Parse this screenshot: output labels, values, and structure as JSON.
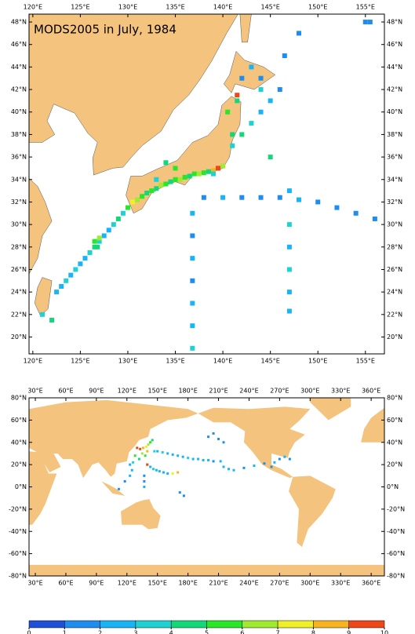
{
  "title": "MODS2005 in July, 1984",
  "maps": [
    {
      "xlim": [
        119.6,
        157
      ],
      "ylim": [
        18.5,
        48.7
      ],
      "xticks": [
        {
          "value": 120,
          "label": "120°E"
        },
        {
          "value": 125,
          "label": "125°E"
        },
        {
          "value": 130,
          "label": "130°E"
        },
        {
          "value": 135,
          "label": "135°E"
        },
        {
          "value": 140,
          "label": "140°E"
        },
        {
          "value": 145,
          "label": "145°E"
        },
        {
          "value": 150,
          "label": "150°E"
        },
        {
          "value": 155,
          "label": "155°E"
        }
      ],
      "yticks": [
        {
          "value": 20,
          "label": "20°N"
        },
        {
          "value": 22,
          "label": "22°N"
        },
        {
          "value": 24,
          "label": "24°N"
        },
        {
          "value": 26,
          "label": "26°N"
        },
        {
          "value": 28,
          "label": "28°N"
        },
        {
          "value": 30,
          "label": "30°N"
        },
        {
          "value": 32,
          "label": "32°N"
        },
        {
          "value": 34,
          "label": "34°N"
        },
        {
          "value": 36,
          "label": "36°N"
        },
        {
          "value": 38,
          "label": "38°N"
        },
        {
          "value": 40,
          "label": "40°N"
        },
        {
          "value": 42,
          "label": "42°N"
        },
        {
          "value": 44,
          "label": "44°N"
        },
        {
          "value": 46,
          "label": "46°N"
        },
        {
          "value": 48,
          "label": "48°N"
        }
      ],
      "cells": {
        "lon": [
          122.5,
          123,
          123.5,
          124,
          124.5,
          125,
          125.5,
          126,
          126.5,
          127,
          127.5,
          128,
          128.5,
          129,
          129.5,
          130,
          130.5,
          131,
          131.5,
          132,
          132.5,
          133,
          133.5,
          134,
          134.5,
          135,
          135.5,
          136,
          136.5,
          137,
          137.5,
          138,
          138.5,
          139,
          139.5,
          140,
          136.8,
          136.8,
          136.8,
          136.8,
          136.8,
          136.8,
          136.8,
          147,
          147,
          147,
          147,
          147,
          147,
          138,
          140,
          142,
          144,
          146,
          148,
          150,
          152,
          154,
          156,
          141,
          142,
          143,
          144,
          145,
          146,
          142,
          143,
          144,
          145,
          141.5,
          126.5,
          126.8,
          127,
          135,
          134,
          133,
          139.5,
          141.5,
          140.5,
          141,
          139,
          144,
          146.5,
          148,
          155,
          155.5,
          121,
          122
        ],
        "lat": [
          24,
          24.5,
          25,
          25.5,
          26,
          26.5,
          27,
          27.5,
          28,
          28.5,
          29,
          29.5,
          30,
          30.5,
          31,
          31.5,
          32,
          32.2,
          32.5,
          32.8,
          33,
          33.2,
          33.5,
          33.6,
          33.8,
          34,
          34,
          34.2,
          34.3,
          34.5,
          34.5,
          34.6,
          34.7,
          34.8,
          35,
          35.2,
          19,
          21,
          23,
          25,
          27,
          29,
          31,
          22.3,
          24,
          26,
          28,
          30,
          33,
          32.4,
          32.4,
          32.4,
          32.4,
          32.4,
          32.2,
          32,
          31.5,
          31,
          30.5,
          37,
          38,
          39,
          40,
          41,
          42,
          43,
          44,
          42,
          36,
          41.5,
          28.5,
          28,
          28.8,
          35,
          35.5,
          34,
          35,
          41,
          40,
          38,
          34.5,
          43,
          45,
          47,
          48,
          48,
          22,
          21.5
        ],
        "values": [
          2,
          2,
          3,
          2,
          3,
          2,
          2,
          3,
          4,
          3,
          2,
          2,
          3,
          4,
          3,
          5,
          7,
          6,
          5,
          4,
          5,
          4,
          6,
          5,
          4,
          5,
          6,
          5,
          4,
          5,
          6,
          5,
          4,
          8,
          9,
          6,
          3,
          2,
          2,
          1,
          2,
          1,
          2,
          2,
          2,
          3,
          2,
          3,
          2,
          1,
          2,
          1,
          1,
          1,
          2,
          1,
          1,
          1,
          1,
          3,
          4,
          3,
          2,
          2,
          1,
          1,
          2,
          3,
          4,
          10,
          5,
          4,
          6,
          5,
          4,
          3,
          10,
          4,
          5,
          4,
          3,
          1,
          1,
          1,
          1,
          1,
          3,
          4
        ]
      }
    },
    {
      "xlim": [
        23.8,
        373
      ],
      "ylim": [
        -80,
        80
      ],
      "xticks": [
        {
          "value": 30,
          "label": "30°E"
        },
        {
          "value": 60,
          "label": "60°E"
        },
        {
          "value": 90,
          "label": "90°E"
        },
        {
          "value": 120,
          "label": "120°E"
        },
        {
          "value": 150,
          "label": "150°E"
        },
        {
          "value": 180,
          "label": "180°E"
        },
        {
          "value": 210,
          "label": "210°E"
        },
        {
          "value": 240,
          "label": "240°E"
        },
        {
          "value": 270,
          "label": "270°E"
        },
        {
          "value": 300,
          "label": "300°E"
        },
        {
          "value": 330,
          "label": "330°E"
        },
        {
          "value": 360,
          "label": "360°E"
        }
      ],
      "yticks": [
        {
          "value": -80,
          "label": "-80°N"
        },
        {
          "value": -60,
          "label": "-60°N"
        },
        {
          "value": -40,
          "label": "-40°N"
        },
        {
          "value": -20,
          "label": "-20°N"
        },
        {
          "value": 0,
          "label": "0°N"
        },
        {
          "value": 20,
          "label": "20°N"
        },
        {
          "value": 40,
          "label": "40°N"
        },
        {
          "value": 60,
          "label": "60°N"
        },
        {
          "value": 80,
          "label": "80°N"
        }
      ],
      "cells": {
        "lon": [
          130,
          133,
          136,
          139,
          141,
          143,
          145,
          135,
          138,
          140,
          128,
          132,
          126,
          123,
          147,
          150,
          155,
          160,
          165,
          170,
          175,
          180,
          185,
          190,
          195,
          200,
          205,
          212,
          140,
          143,
          146,
          149,
          152,
          156,
          160,
          165,
          170,
          215,
          220,
          225,
          235,
          245,
          255,
          262,
          265,
          270,
          275,
          280,
          137,
          137,
          137,
          200,
          205,
          210,
          215,
          125,
          123,
          118,
          112,
          172,
          176,
          140
        ],
        "lat": [
          35,
          34,
          35,
          36,
          38,
          40,
          42,
          30,
          28,
          32,
          28,
          25,
          22,
          20,
          32,
          32,
          31,
          30,
          29,
          28,
          27,
          26,
          25,
          25,
          24,
          24,
          23,
          23,
          20,
          18,
          16,
          15,
          14,
          13,
          12,
          12,
          13,
          18,
          16,
          15,
          17,
          19,
          21,
          18,
          22,
          25,
          27,
          25,
          10,
          5,
          0,
          45,
          48,
          43,
          40,
          15,
          10,
          5,
          -2,
          -5,
          -8,
          20
        ],
        "values": [
          10,
          9,
          8,
          7,
          6,
          5,
          4,
          6,
          5,
          8,
          5,
          4,
          3,
          2,
          3,
          2,
          3,
          2,
          2,
          2,
          2,
          3,
          2,
          2,
          2,
          2,
          1,
          2,
          3,
          2,
          3,
          2,
          2,
          2,
          2,
          7,
          8,
          2,
          2,
          2,
          1,
          2,
          1,
          1,
          2,
          1,
          2,
          1,
          1,
          1,
          2,
          1,
          1,
          1,
          1,
          2,
          2,
          1,
          1,
          1,
          1,
          9
        ]
      }
    }
  ],
  "colorbar": {
    "ticks": [
      0,
      1,
      2,
      3,
      4,
      5,
      6,
      7,
      8,
      9,
      10
    ],
    "colors": [
      "#1e50d8",
      "#1f8df0",
      "#19b4f5",
      "#1ed2d2",
      "#13d87a",
      "#28e628",
      "#a0ea30",
      "#f0f028",
      "#f8b420",
      "#ee4818"
    ]
  }
}
